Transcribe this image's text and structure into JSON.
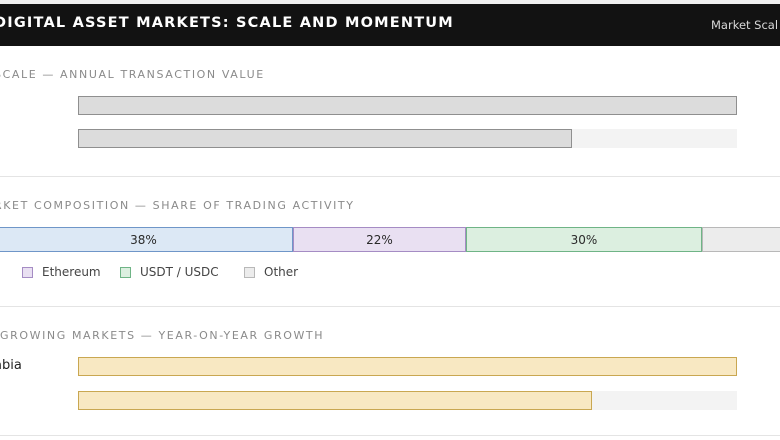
{
  "header": {
    "title": "DIGITAL ASSET MARKETS: SCALE AND MOMENTUM",
    "tag": "Market Scal"
  },
  "colors": {
    "bitcoin": "#dce8f5",
    "bitcoin_border": "#6f96c8",
    "ethereum": "#e9e0f2",
    "ethereum_border": "#a58cc4",
    "stablecoins": "#dcefe0",
    "stablecoins_border": "#6fb486",
    "other": "#ececec",
    "other_border": "#b8b8b8",
    "scale_bar": "#dcdcdc",
    "growth_bar": "#f8e8c2"
  },
  "chart_data": [
    {
      "type": "bar",
      "orientation": "horizontal",
      "title": "SCALE — ANNUAL TRANSACTION VALUE",
      "categories": [
        "",
        ""
      ],
      "values": [
        1.0,
        0.75
      ],
      "value_unit": "fraction of largest",
      "grid": false
    },
    {
      "type": "bar",
      "orientation": "horizontal-stacked",
      "title": "RKET COMPOSITION — SHARE OF TRADING ACTIVITY",
      "segments": [
        {
          "name": "",
          "value": 38,
          "label": "38%",
          "color_key": "bitcoin"
        },
        {
          "name": "Ethereum",
          "value": 22,
          "label": "22%",
          "color_key": "ethereum"
        },
        {
          "name": "USDT / USDC",
          "value": 30,
          "label": "30%",
          "color_key": "stablecoins"
        },
        {
          "name": "Other",
          "value": 10,
          "label": "",
          "color_key": "other"
        }
      ],
      "legend": [
        "Ethereum",
        "USDT / USDC",
        "Other"
      ],
      "legend_position": "bottom",
      "grid": false
    },
    {
      "type": "bar",
      "orientation": "horizontal",
      "title": "-GROWING MARKETS — YEAR-ON-YEAR GROWTH",
      "categories": [
        "abia",
        ""
      ],
      "values": [
        1.0,
        0.78
      ],
      "value_unit": "fraction of largest",
      "grid": false
    }
  ]
}
